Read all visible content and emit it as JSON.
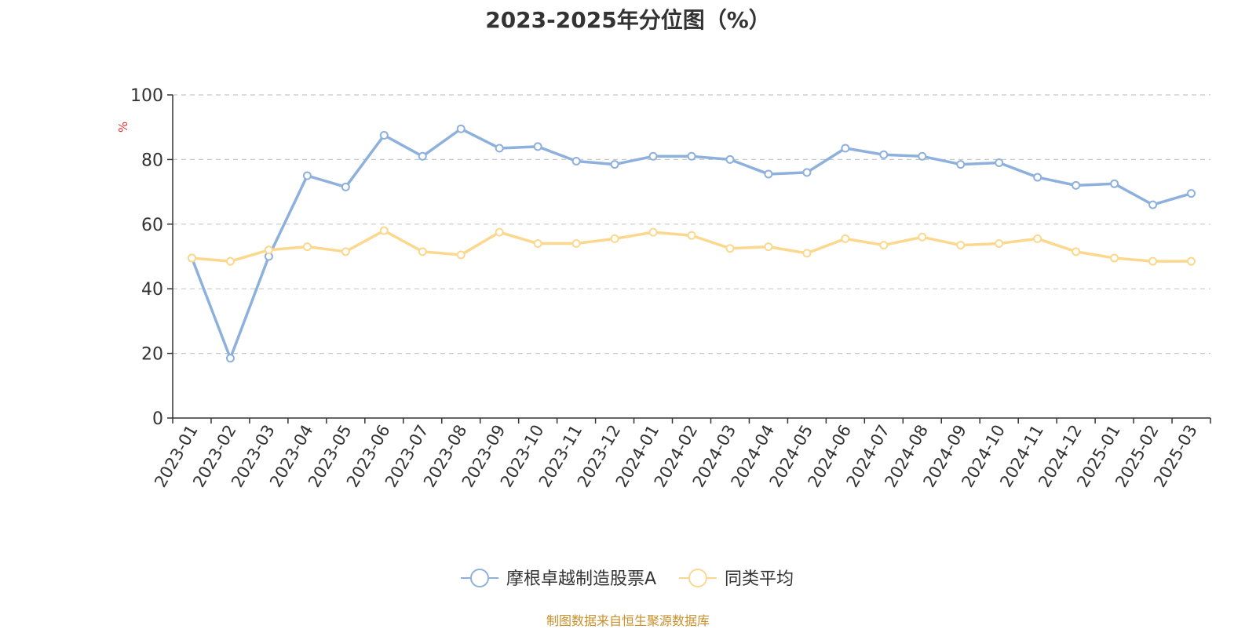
{
  "chart_data": {
    "type": "line",
    "title": "2023-2025年分位图（%）",
    "xlabel": "",
    "ylabel": "%",
    "ylim": [
      0,
      100
    ],
    "yticks": [
      0,
      20,
      40,
      60,
      80,
      100
    ],
    "grid": true,
    "legend_position": "bottom",
    "categories": [
      "2023-01",
      "2023-02",
      "2023-03",
      "2023-04",
      "2023-05",
      "2023-06",
      "2023-07",
      "2023-08",
      "2023-09",
      "2023-10",
      "2023-11",
      "2023-12",
      "2024-01",
      "2024-02",
      "2024-03",
      "2024-04",
      "2024-05",
      "2024-06",
      "2024-07",
      "2024-08",
      "2024-09",
      "2024-10",
      "2024-11",
      "2024-12",
      "2025-01",
      "2025-02",
      "2025-03"
    ],
    "series": [
      {
        "name": "摩根卓越制造股票A",
        "color": "#8eb0dc",
        "values": [
          49.5,
          18.5,
          50.0,
          75.0,
          71.5,
          87.5,
          81.0,
          89.5,
          83.5,
          84.0,
          79.5,
          78.5,
          81.0,
          81.0,
          80.0,
          75.5,
          76.0,
          83.5,
          81.5,
          81.0,
          78.5,
          79.0,
          74.5,
          72.0,
          72.5,
          66.0,
          69.5
        ]
      },
      {
        "name": "同类平均",
        "color": "#fcd88e",
        "values": [
          49.5,
          48.5,
          52.0,
          53.0,
          51.5,
          58.0,
          51.5,
          50.5,
          57.5,
          54.0,
          54.0,
          55.5,
          57.5,
          56.5,
          52.5,
          53.0,
          51.0,
          55.5,
          53.5,
          56.0,
          53.5,
          54.0,
          55.5,
          51.5,
          49.5,
          48.5,
          48.5
        ]
      }
    ]
  },
  "footer": "制图数据来自恒生聚源数据库"
}
